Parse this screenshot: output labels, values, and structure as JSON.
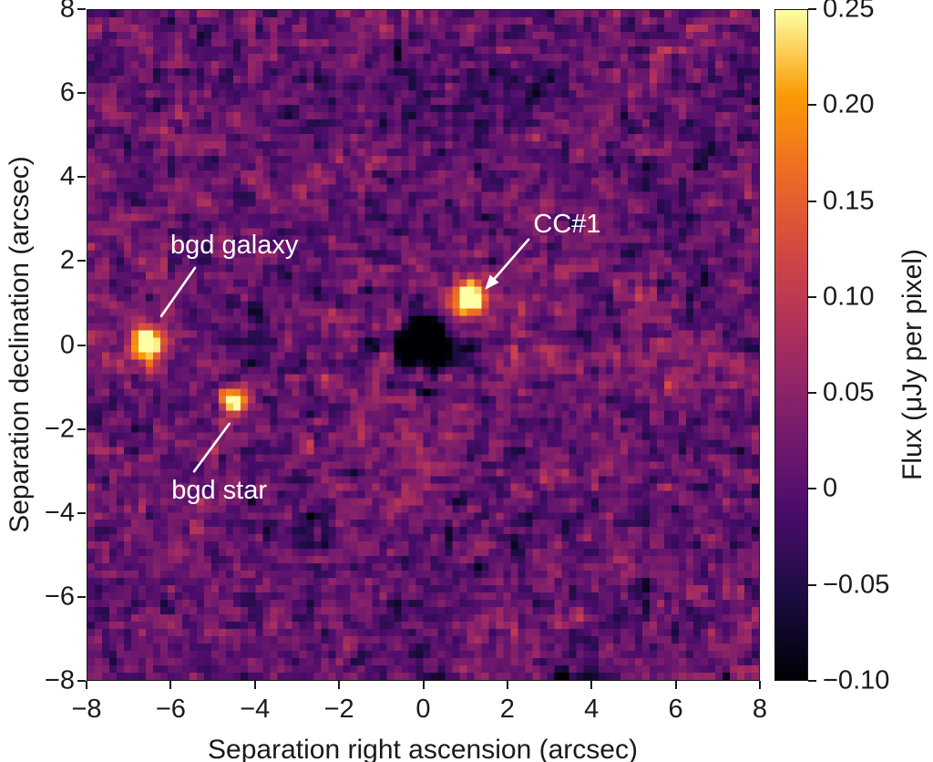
{
  "chart_data": {
    "type": "heatmap",
    "title": "",
    "xlabel": "Separation right ascension (arcsec)",
    "ylabel": "Separation declination (arcsec)",
    "xlim": [
      -8,
      8
    ],
    "ylim": [
      -8,
      8
    ],
    "x_tick_values": [
      -8,
      -6,
      -4,
      -2,
      0,
      2,
      4,
      6,
      8
    ],
    "x_tick_labels": [
      "−8",
      "−6",
      "−4",
      "−2",
      "0",
      "2",
      "4",
      "6",
      "8"
    ],
    "y_tick_values": [
      8,
      6,
      4,
      2,
      0,
      -2,
      -4,
      -6,
      -8
    ],
    "y_tick_labels": [
      "8",
      "6",
      "4",
      "2",
      "0",
      "−2",
      "−4",
      "−6",
      "−8"
    ],
    "grid": false,
    "colorbar": {
      "label": "Flux (μJy per pixel)",
      "vmin": -0.1,
      "vmax": 0.25,
      "tick_values": [
        0.25,
        0.2,
        0.15,
        0.1,
        0.05,
        0,
        -0.05,
        -0.1
      ],
      "tick_labels": [
        "0.25",
        "0.20",
        "0.15",
        "0.10",
        "0.05",
        "0",
        "−0.05",
        "−0.10"
      ],
      "colormap": "inferno",
      "colormap_stops": [
        {
          "frac": 0.0,
          "color": "#000004"
        },
        {
          "frac": 0.125,
          "color": "#1b0c41"
        },
        {
          "frac": 0.25,
          "color": "#4a0c6b"
        },
        {
          "frac": 0.375,
          "color": "#781c6d"
        },
        {
          "frac": 0.5,
          "color": "#a52c60"
        },
        {
          "frac": 0.625,
          "color": "#cf4446"
        },
        {
          "frac": 0.75,
          "color": "#ed6925"
        },
        {
          "frac": 0.875,
          "color": "#fb9b06"
        },
        {
          "frac": 1.0,
          "color": "#fcffa4"
        }
      ]
    },
    "sources": [
      {
        "name": "bgd galaxy",
        "x": -6.6,
        "y": 0.0,
        "peak": 0.3,
        "sigma": 0.25,
        "halo_peak": 0.055,
        "halo_sigma": 0.55
      },
      {
        "name": "bgd star",
        "x": -4.5,
        "y": -1.35,
        "peak": 0.28,
        "sigma": 0.21,
        "halo_peak": 0.03,
        "halo_sigma": 0.4
      },
      {
        "name": "CC#1",
        "x": 1.1,
        "y": 1.1,
        "peak": 0.36,
        "sigma": 0.26,
        "halo_peak": 0.04,
        "halo_sigma": 0.5
      }
    ],
    "central_star": {
      "x": 0.0,
      "y": 0.0,
      "mask_radius_arcsec": 0.58
    },
    "annotations": [
      {
        "id": "bgd-galaxy",
        "text": "bgd galaxy",
        "color": "#ffffff",
        "text_x": -4.5,
        "text_y": 2.36,
        "line": {
          "x1": -5.44,
          "y1": 1.84,
          "x2": -6.24,
          "y2": 0.69
        },
        "arrow": false
      },
      {
        "id": "bgd-star",
        "text": "bgd star",
        "color": "#ffffff",
        "text_x": -4.86,
        "text_y": -3.5,
        "line": {
          "x1": -5.46,
          "y1": -3.02,
          "x2": -4.62,
          "y2": -1.88
        },
        "arrow": false
      },
      {
        "id": "cc1",
        "text": "CC#1",
        "color": "#ffffff",
        "text_x": 3.43,
        "text_y": 2.85,
        "line": {
          "x1": 2.51,
          "y1": 2.52,
          "x2": 1.47,
          "y2": 1.32
        },
        "arrow": true
      }
    ],
    "psf_residual_features": [
      {
        "type": "disk",
        "x": 0.0,
        "y": 0.0,
        "radius": 0.58,
        "soft": 0.15,
        "value": -0.115
      },
      {
        "type": "annulus",
        "x": 0.0,
        "y": 0.0,
        "radius": 1.9,
        "width": 1.0,
        "amp": 0.014
      },
      {
        "type": "blob",
        "x": -0.08,
        "y": -0.66,
        "amp": 0.15,
        "sigma": 0.14
      },
      {
        "type": "blob",
        "x": -0.6,
        "y": 0.52,
        "amp": 0.1,
        "sigma": 0.15
      },
      {
        "type": "blob",
        "x": 0.66,
        "y": 0.28,
        "amp": 0.06,
        "sigma": 0.12
      },
      {
        "type": "blob",
        "x": -0.9,
        "y": -0.32,
        "amp": 0.06,
        "sigma": 0.13
      },
      {
        "type": "blob",
        "x": 0.52,
        "y": -0.72,
        "amp": 0.05,
        "sigma": 0.12
      },
      {
        "type": "blob",
        "x": -1.25,
        "y": 0.05,
        "amp": -0.1,
        "sigma": 0.2
      },
      {
        "type": "blob",
        "x": 1.05,
        "y": -0.12,
        "amp": -0.09,
        "sigma": 0.19
      },
      {
        "type": "blob",
        "x": 0.05,
        "y": -1.15,
        "amp": -0.1,
        "sigma": 0.18
      },
      {
        "type": "blob",
        "x": -0.75,
        "y": -0.95,
        "amp": -0.07,
        "sigma": 0.16
      },
      {
        "type": "blob",
        "x": 0.8,
        "y": -0.85,
        "amp": -0.07,
        "sigma": 0.16
      },
      {
        "type": "blob",
        "x": -0.15,
        "y": 1.0,
        "amp": -0.05,
        "sigma": 0.18
      },
      {
        "type": "blob",
        "x": 0.35,
        "y": -1.7,
        "amp": 0.05,
        "sigma": 0.16
      },
      {
        "type": "blob",
        "x": -1.1,
        "y": -1.6,
        "amp": -0.04,
        "sigma": 0.25
      },
      {
        "type": "blob",
        "x": 1.3,
        "y": -1.3,
        "amp": -0.04,
        "sigma": 0.25
      },
      {
        "type": "blob",
        "x": 0.5,
        "y": 6.3,
        "amp": -0.022,
        "sigma": 1.6
      },
      {
        "type": "blob",
        "x": 2.6,
        "y": 5.8,
        "amp": -0.06,
        "sigma": 0.2
      }
    ],
    "streak": {
      "y": -0.42,
      "sigma": 0.33,
      "amp": 0.035,
      "x_start": 0.7,
      "x_end": 8
    },
    "noise": {
      "seed": 11,
      "mean": 0.012,
      "sigma": 0.05,
      "lowfreq_sigma": 0.014,
      "lowfreq_cells": 12,
      "pixels": 92
    }
  }
}
